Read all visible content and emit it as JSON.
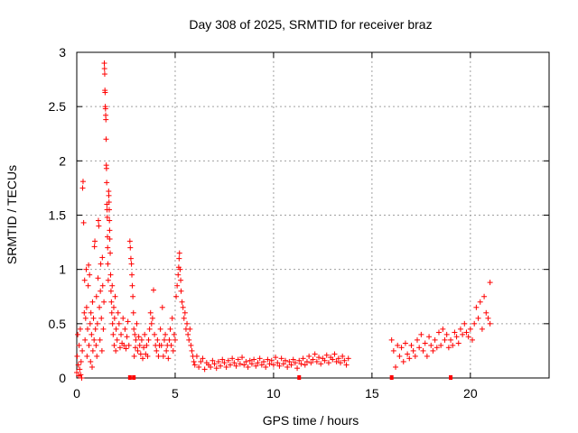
{
  "chart_data": {
    "type": "scatter",
    "title": "Day 308 of 2025, SRMTID for receiver braz",
    "xlabel": "GPS time / hours",
    "ylabel": "SRMTID / TECUs",
    "xlim": [
      0,
      24
    ],
    "ylim": [
      0,
      3
    ],
    "xticks": [
      "0",
      "5",
      "10",
      "15",
      "20"
    ],
    "yticks": [
      "0",
      "0.5",
      "1",
      "1.5",
      "2",
      "2.5",
      "3"
    ],
    "grid": true,
    "marker": "+",
    "color": "#ff0000",
    "series": [
      {
        "name": "SRMTID",
        "points": [
          [
            0.0,
            0.05
          ],
          [
            0.02,
            0.2
          ],
          [
            0.05,
            0.4
          ],
          [
            0.08,
            0.12
          ],
          [
            0.1,
            0.02
          ],
          [
            0.12,
            0.3
          ],
          [
            0.15,
            0.08
          ],
          [
            0.18,
            0.45
          ],
          [
            0.2,
            0.03
          ],
          [
            0.22,
            0.15
          ],
          [
            0.25,
            0.0
          ],
          [
            0.28,
            0.25
          ],
          [
            0.3,
            1.75
          ],
          [
            0.32,
            1.81
          ],
          [
            0.35,
            1.43
          ],
          [
            0.38,
            0.6
          ],
          [
            0.4,
            0.9
          ],
          [
            0.42,
            0.35
          ],
          [
            0.45,
            0.55
          ],
          [
            0.48,
            1.0
          ],
          [
            0.5,
            0.65
          ],
          [
            0.52,
            0.2
          ],
          [
            0.55,
            0.45
          ],
          [
            0.58,
            0.85
          ],
          [
            0.6,
            1.04
          ],
          [
            0.62,
            0.3
          ],
          [
            0.65,
            0.95
          ],
          [
            0.68,
            0.5
          ],
          [
            0.7,
            0.15
          ],
          [
            0.72,
            0.6
          ],
          [
            0.75,
            0.4
          ],
          [
            0.78,
            0.1
          ],
          [
            0.8,
            0.7
          ],
          [
            0.82,
            0.25
          ],
          [
            0.85,
            0.55
          ],
          [
            0.88,
            0.35
          ],
          [
            0.9,
            1.21
          ],
          [
            0.92,
            1.26
          ],
          [
            0.95,
            0.45
          ],
          [
            0.98,
            0.3
          ],
          [
            1.0,
            0.75
          ],
          [
            1.02,
            0.2
          ],
          [
            1.05,
            0.5
          ],
          [
            1.08,
            0.92
          ],
          [
            1.1,
            1.45
          ],
          [
            1.12,
            1.4
          ],
          [
            1.15,
            0.65
          ],
          [
            1.18,
            0.35
          ],
          [
            1.2,
            0.8
          ],
          [
            1.22,
            1.05
          ],
          [
            1.25,
            0.55
          ],
          [
            1.28,
            0.25
          ],
          [
            1.3,
            1.11
          ],
          [
            1.32,
            0.85
          ],
          [
            1.35,
            0.45
          ],
          [
            1.38,
            0.7
          ],
          [
            1.4,
            2.9
          ],
          [
            1.41,
            2.85
          ],
          [
            1.42,
            2.8
          ],
          [
            1.43,
            2.65
          ],
          [
            1.44,
            2.63
          ],
          [
            1.45,
            2.5
          ],
          [
            1.46,
            2.48
          ],
          [
            1.47,
            2.42
          ],
          [
            1.48,
            2.38
          ],
          [
            1.49,
            2.2
          ],
          [
            1.5,
            1.96
          ],
          [
            1.51,
            1.93
          ],
          [
            1.52,
            1.8
          ],
          [
            1.53,
            1.6
          ],
          [
            1.54,
            1.55
          ],
          [
            1.55,
            1.48
          ],
          [
            1.56,
            1.3
          ],
          [
            1.57,
            1.2
          ],
          [
            1.58,
            1.05
          ],
          [
            1.6,
            0.9
          ],
          [
            1.62,
            1.72
          ],
          [
            1.63,
            1.68
          ],
          [
            1.64,
            1.62
          ],
          [
            1.65,
            1.55
          ],
          [
            1.66,
            1.45
          ],
          [
            1.67,
            1.36
          ],
          [
            1.68,
            1.28
          ],
          [
            1.7,
            1.15
          ],
          [
            1.72,
            0.95
          ],
          [
            1.74,
            0.8
          ],
          [
            1.76,
            0.7
          ],
          [
            1.78,
            0.6
          ],
          [
            1.8,
            0.85
          ],
          [
            1.82,
            0.5
          ],
          [
            1.85,
            0.4
          ],
          [
            1.88,
            0.65
          ],
          [
            1.9,
            0.3
          ],
          [
            1.92,
            0.55
          ],
          [
            1.95,
            0.75
          ],
          [
            1.98,
            0.25
          ],
          [
            2.0,
            0.45
          ],
          [
            2.05,
            0.35
          ],
          [
            2.1,
            0.6
          ],
          [
            2.15,
            0.5
          ],
          [
            2.2,
            0.28
          ],
          [
            2.25,
            0.4
          ],
          [
            2.3,
            0.32
          ],
          [
            2.35,
            0.55
          ],
          [
            2.4,
            0.3
          ],
          [
            2.45,
            0.45
          ],
          [
            2.5,
            0.27
          ],
          [
            2.55,
            0.38
          ],
          [
            2.6,
            0.52
          ],
          [
            2.65,
            0.3
          ],
          [
            2.7,
            1.26
          ],
          [
            2.72,
            1.2
          ],
          [
            2.75,
            1.1
          ],
          [
            2.78,
            1.05
          ],
          [
            2.8,
            0.95
          ],
          [
            2.82,
            0.85
          ],
          [
            2.85,
            0.75
          ],
          [
            2.88,
            0.6
          ],
          [
            2.9,
            0.45
          ],
          [
            2.92,
            0.2
          ],
          [
            2.95,
            0.4
          ],
          [
            2.98,
            0.28
          ],
          [
            3.0,
            0.35
          ],
          [
            3.05,
            0.5
          ],
          [
            3.1,
            0.25
          ],
          [
            3.15,
            0.38
          ],
          [
            3.2,
            0.3
          ],
          [
            3.25,
            0.22
          ],
          [
            3.3,
            0.35
          ],
          [
            3.35,
            0.18
          ],
          [
            3.4,
            0.28
          ],
          [
            3.45,
            0.4
          ],
          [
            3.5,
            0.22
          ],
          [
            3.55,
            0.3
          ],
          [
            3.6,
            0.2
          ],
          [
            3.65,
            0.35
          ],
          [
            3.7,
            0.45
          ],
          [
            3.75,
            0.6
          ],
          [
            3.8,
            0.5
          ],
          [
            3.85,
            0.55
          ],
          [
            3.9,
            0.81
          ],
          [
            3.95,
            0.4
          ],
          [
            4.0,
            0.3
          ],
          [
            4.05,
            0.25
          ],
          [
            4.1,
            0.35
          ],
          [
            4.15,
            0.2
          ],
          [
            4.2,
            0.3
          ],
          [
            4.25,
            0.45
          ],
          [
            4.3,
            0.3
          ],
          [
            4.35,
            0.65
          ],
          [
            4.4,
            0.2
          ],
          [
            4.45,
            0.35
          ],
          [
            4.5,
            0.4
          ],
          [
            4.55,
            0.25
          ],
          [
            4.6,
            0.3
          ],
          [
            4.65,
            0.18
          ],
          [
            4.7,
            0.35
          ],
          [
            4.75,
            0.45
          ],
          [
            4.8,
            0.3
          ],
          [
            4.85,
            0.55
          ],
          [
            4.9,
            0.25
          ],
          [
            4.95,
            0.4
          ],
          [
            5.0,
            0.35
          ],
          [
            5.05,
            0.75
          ],
          [
            5.1,
            0.85
          ],
          [
            5.15,
            0.95
          ],
          [
            5.18,
            1.02
          ],
          [
            5.2,
            1.1
          ],
          [
            5.22,
            1.15
          ],
          [
            5.25,
            1.0
          ],
          [
            5.28,
            0.9
          ],
          [
            5.3,
            0.8
          ],
          [
            5.35,
            0.7
          ],
          [
            5.4,
            0.65
          ],
          [
            5.45,
            0.55
          ],
          [
            5.5,
            0.6
          ],
          [
            5.55,
            0.45
          ],
          [
            5.6,
            0.5
          ],
          [
            5.65,
            0.4
          ],
          [
            5.7,
            0.35
          ],
          [
            5.75,
            0.45
          ],
          [
            5.8,
            0.3
          ],
          [
            5.85,
            0.25
          ],
          [
            5.9,
            0.2
          ],
          [
            5.95,
            0.15
          ],
          [
            6.0,
            0.12
          ],
          [
            6.1,
            0.2
          ],
          [
            6.2,
            0.1
          ],
          [
            6.3,
            0.15
          ],
          [
            6.4,
            0.18
          ],
          [
            6.5,
            0.08
          ],
          [
            6.6,
            0.14
          ],
          [
            6.7,
            0.12
          ],
          [
            6.8,
            0.1
          ],
          [
            6.9,
            0.16
          ],
          [
            7.0,
            0.13
          ],
          [
            7.1,
            0.09
          ],
          [
            7.2,
            0.15
          ],
          [
            7.3,
            0.11
          ],
          [
            7.4,
            0.17
          ],
          [
            7.5,
            0.14
          ],
          [
            7.6,
            0.1
          ],
          [
            7.7,
            0.16
          ],
          [
            7.8,
            0.12
          ],
          [
            7.9,
            0.18
          ],
          [
            8.0,
            0.14
          ],
          [
            8.1,
            0.11
          ],
          [
            8.2,
            0.17
          ],
          [
            8.3,
            0.13
          ],
          [
            8.4,
            0.19
          ],
          [
            8.5,
            0.12
          ],
          [
            8.6,
            0.15
          ],
          [
            8.7,
            0.1
          ],
          [
            8.8,
            0.16
          ],
          [
            8.9,
            0.13
          ],
          [
            9.0,
            0.17
          ],
          [
            9.1,
            0.11
          ],
          [
            9.2,
            0.14
          ],
          [
            9.3,
            0.18
          ],
          [
            9.4,
            0.12
          ],
          [
            9.5,
            0.15
          ],
          [
            9.6,
            0.1
          ],
          [
            9.7,
            0.17
          ],
          [
            9.8,
            0.13
          ],
          [
            9.9,
            0.16
          ],
          [
            10.0,
            0.12
          ],
          [
            10.1,
            0.19
          ],
          [
            10.2,
            0.14
          ],
          [
            10.3,
            0.11
          ],
          [
            10.4,
            0.18
          ],
          [
            10.5,
            0.13
          ],
          [
            10.6,
            0.16
          ],
          [
            10.7,
            0.1
          ],
          [
            10.8,
            0.15
          ],
          [
            10.9,
            0.12
          ],
          [
            11.0,
            0.17
          ],
          [
            11.1,
            0.14
          ],
          [
            11.2,
            0.09
          ],
          [
            11.3,
            0.16
          ],
          [
            11.4,
            0.13
          ],
          [
            11.5,
            0.18
          ],
          [
            11.6,
            0.12
          ],
          [
            11.7,
            0.15
          ],
          [
            11.8,
            0.2
          ],
          [
            11.9,
            0.14
          ],
          [
            12.0,
            0.17
          ],
          [
            12.1,
            0.22
          ],
          [
            12.2,
            0.15
          ],
          [
            12.3,
            0.19
          ],
          [
            12.4,
            0.13
          ],
          [
            12.5,
            0.18
          ],
          [
            12.6,
            0.16
          ],
          [
            12.7,
            0.21
          ],
          [
            12.8,
            0.14
          ],
          [
            12.9,
            0.19
          ],
          [
            13.0,
            0.17
          ],
          [
            13.1,
            0.22
          ],
          [
            13.2,
            0.15
          ],
          [
            13.3,
            0.18
          ],
          [
            13.4,
            0.14
          ],
          [
            13.5,
            0.2
          ],
          [
            13.6,
            0.16
          ],
          [
            13.7,
            0.12
          ],
          [
            13.8,
            0.18
          ],
          [
            16.0,
            0.35
          ],
          [
            16.1,
            0.25
          ],
          [
            16.2,
            0.1
          ],
          [
            16.3,
            0.3
          ],
          [
            16.4,
            0.2
          ],
          [
            16.5,
            0.28
          ],
          [
            16.6,
            0.15
          ],
          [
            16.7,
            0.32
          ],
          [
            16.8,
            0.22
          ],
          [
            16.9,
            0.18
          ],
          [
            17.0,
            0.3
          ],
          [
            17.1,
            0.25
          ],
          [
            17.2,
            0.2
          ],
          [
            17.3,
            0.35
          ],
          [
            17.4,
            0.28
          ],
          [
            17.5,
            0.4
          ],
          [
            17.6,
            0.25
          ],
          [
            17.7,
            0.32
          ],
          [
            17.8,
            0.2
          ],
          [
            17.9,
            0.38
          ],
          [
            18.0,
            0.3
          ],
          [
            18.1,
            0.25
          ],
          [
            18.2,
            0.35
          ],
          [
            18.3,
            0.28
          ],
          [
            18.4,
            0.42
          ],
          [
            18.5,
            0.3
          ],
          [
            18.6,
            0.45
          ],
          [
            18.7,
            0.35
          ],
          [
            18.8,
            0.4
          ],
          [
            18.9,
            0.28
          ],
          [
            19.0,
            0.35
          ],
          [
            19.1,
            0.3
          ],
          [
            19.2,
            0.42
          ],
          [
            19.3,
            0.38
          ],
          [
            19.4,
            0.32
          ],
          [
            19.5,
            0.45
          ],
          [
            19.6,
            0.4
          ],
          [
            19.7,
            0.5
          ],
          [
            19.8,
            0.42
          ],
          [
            19.9,
            0.38
          ],
          [
            20.0,
            0.45
          ],
          [
            20.1,
            0.35
          ],
          [
            20.2,
            0.5
          ],
          [
            20.3,
            0.65
          ],
          [
            20.4,
            0.55
          ],
          [
            20.5,
            0.7
          ],
          [
            20.6,
            0.45
          ],
          [
            20.7,
            0.75
          ],
          [
            20.8,
            0.6
          ],
          [
            20.9,
            0.55
          ],
          [
            21.0,
            0.5
          ],
          [
            21.0,
            0.88
          ]
        ],
        "near_zero_markers_x": [
          2.7,
          2.9,
          11.3,
          16.0,
          19.0
        ]
      }
    ]
  }
}
